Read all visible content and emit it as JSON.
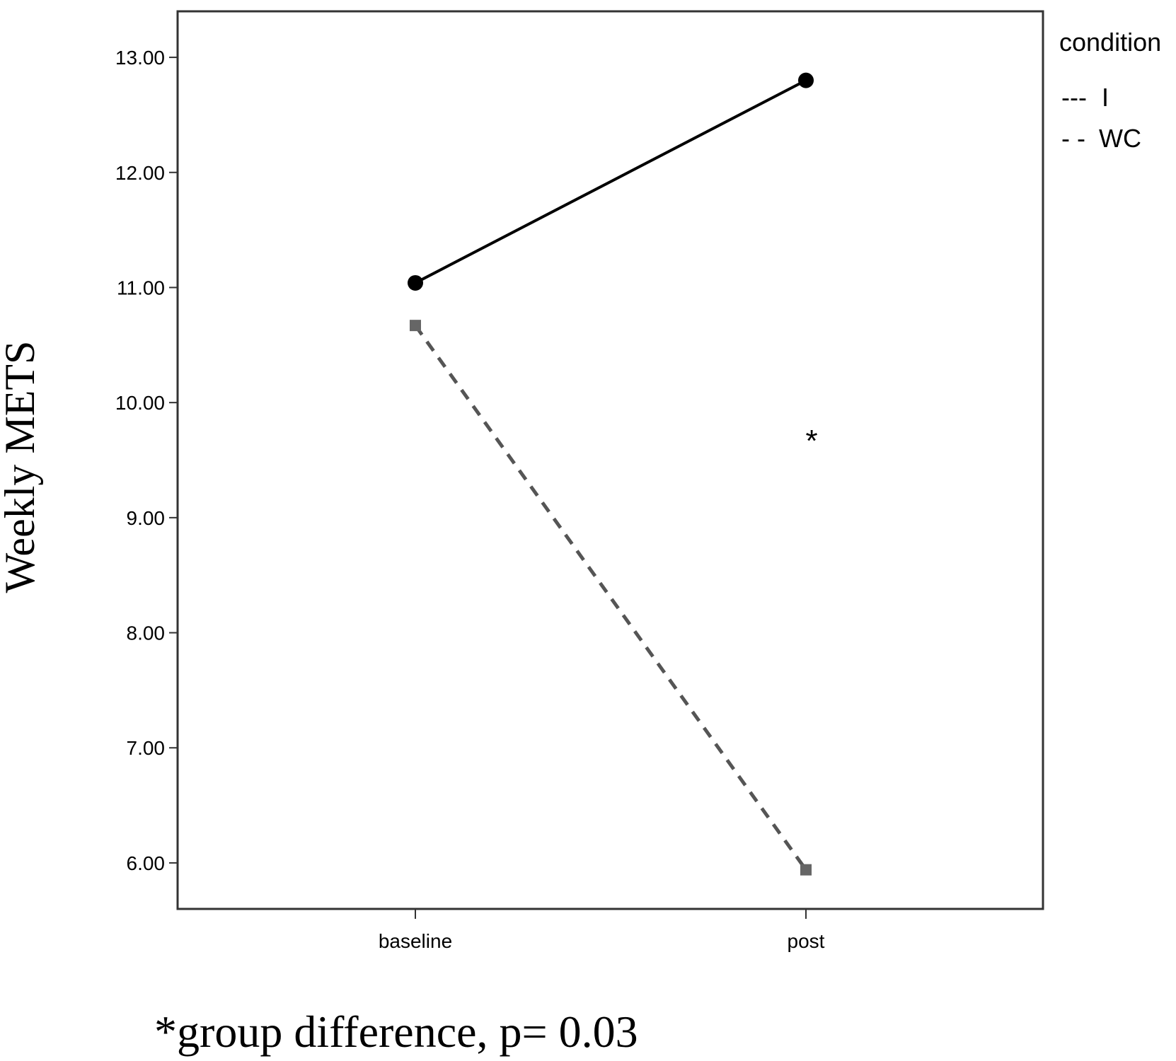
{
  "chart_data": {
    "type": "line",
    "title": "",
    "xlabel": "",
    "ylabel": "Weekly METS",
    "categories": [
      "baseline",
      "post"
    ],
    "ylim": [
      5.6,
      13.4
    ],
    "yticks": [
      "6.00",
      "7.00",
      "8.00",
      "9.00",
      "10.00",
      "11.00",
      "12.00",
      "13.00"
    ],
    "grid": false,
    "legend": {
      "title": "condition",
      "position": "top-right outside plot",
      "entries": [
        {
          "label": "I",
          "swatch": "---"
        },
        {
          "label": "WC",
          "swatch": "- -"
        }
      ]
    },
    "series": [
      {
        "name": "I",
        "values": [
          11.04,
          12.8
        ],
        "color": "#000000",
        "line": "solid",
        "marker": "circle"
      },
      {
        "name": "WC",
        "values": [
          10.67,
          5.94
        ],
        "color": "#555555",
        "line": "dashed",
        "marker": "square"
      }
    ],
    "annotations": [
      {
        "text": "*",
        "category": "post",
        "y": 9.75
      },
      {
        "text": "*group difference, p= 0.03",
        "position": "below chart"
      }
    ]
  }
}
